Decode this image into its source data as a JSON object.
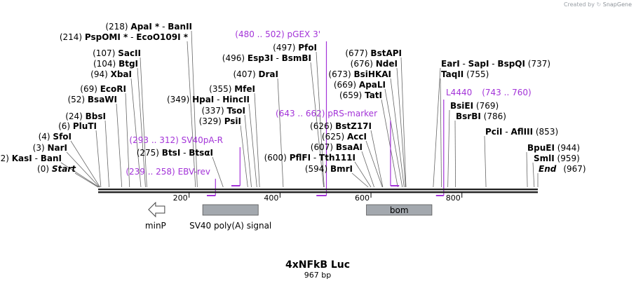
{
  "credit": {
    "prefix": "Created by",
    "brand": "SnapGene"
  },
  "map": {
    "title": "4xNFkB Luc",
    "size_label": "967 bp",
    "length_bp": 967,
    "colors": {
      "backbone": "#222222",
      "feature": "#a3a8ae",
      "primer": "#a333d8",
      "label": "#000000"
    }
  },
  "ruler": [
    {
      "pos": 200,
      "label": "200"
    },
    {
      "pos": 400,
      "label": "400"
    },
    {
      "pos": 600,
      "label": "600"
    },
    {
      "pos": 800,
      "label": "800"
    }
  ],
  "sites": [
    {
      "coord": "(0)",
      "name": "Start",
      "italic": true,
      "pos": 0
    },
    {
      "coord": "(2)",
      "name": "KasI",
      "name2": "BanI",
      "pos": 2
    },
    {
      "coord": "(3)",
      "name": "NarI",
      "pos": 3
    },
    {
      "coord": "(4)",
      "name": "SfoI",
      "pos": 4
    },
    {
      "coord": "(6)",
      "name": "PluTI",
      "pos": 6
    },
    {
      "coord": "(24)",
      "name": "BbsI",
      "pos": 24
    },
    {
      "coord": "(52)",
      "name": "BsaWI",
      "pos": 52
    },
    {
      "coord": "(69)",
      "name": "EcoRI",
      "pos": 69
    },
    {
      "coord": "(94)",
      "name": "XbaI",
      "pos": 94
    },
    {
      "coord": "(104)",
      "name": "BtgI",
      "pos": 104
    },
    {
      "coord": "(107)",
      "name": "SacII",
      "pos": 107
    },
    {
      "coord": "(214)",
      "name": "PspOMI *",
      "name2": "EcoO109I *",
      "pos": 214
    },
    {
      "coord": "(218)",
      "name": "ApaI *",
      "name2": "BanII",
      "pos": 218
    },
    {
      "coord": "(275)",
      "name": "BtsI",
      "name2": "BtsαI",
      "pos": 275
    },
    {
      "coord": "(329)",
      "name": "PsiI",
      "pos": 329
    },
    {
      "coord": "(337)",
      "name": "TsoI",
      "pos": 337
    },
    {
      "coord": "(349)",
      "name": "HpaI",
      "name2": "HincII",
      "pos": 349
    },
    {
      "coord": "(355)",
      "name": "MfeI",
      "pos": 355
    },
    {
      "coord": "(407)",
      "name": "DraI",
      "pos": 407
    },
    {
      "coord": "(496)",
      "name": "Esp3I",
      "name2": "BsmBI",
      "pos": 496
    },
    {
      "coord": "(497)",
      "name": "PfoI",
      "pos": 497
    },
    {
      "coord": "(594)",
      "name": "BmrI",
      "pos": 594
    },
    {
      "coord": "(600)",
      "name": "PflFI",
      "name2": "Tth111I",
      "pos": 600
    },
    {
      "coord": "(607)",
      "name": "BsaAI",
      "pos": 607
    },
    {
      "coord": "(625)",
      "name": "AccI",
      "pos": 625
    },
    {
      "coord": "(626)",
      "name": "BstZ17I",
      "pos": 626
    },
    {
      "coord": "(659)",
      "name": "TatI",
      "pos": 659
    },
    {
      "coord": "(669)",
      "name": "ApaLI",
      "pos": 669
    },
    {
      "coord": "(673)",
      "name": "BsiHKAI",
      "pos": 673
    },
    {
      "coord": "(676)",
      "name": "NdeI",
      "pos": 676
    },
    {
      "coord": "(677)",
      "name": "BstAPI",
      "pos": 677
    },
    {
      "coord": "(737)",
      "name": "EarI",
      "name2": "SapI",
      "name3": "BspQI",
      "pos": 737
    },
    {
      "coord": "(755)",
      "name": "TaqII",
      "pos": 755
    },
    {
      "coord": "(769)",
      "name": "BsiEI",
      "pos": 769
    },
    {
      "coord": "(786)",
      "name": "BsrBI",
      "pos": 786
    },
    {
      "coord": "(853)",
      "name": "PciI",
      "name2": "AflIII",
      "pos": 853
    },
    {
      "coord": "(944)",
      "name": "BpuEI",
      "pos": 944
    },
    {
      "coord": "(959)",
      "name": "SmlI",
      "pos": 959
    },
    {
      "coord": "(967)",
      "name": "End",
      "italic": true,
      "pos": 967
    }
  ],
  "primers": [
    {
      "name": "EBV-rev",
      "range": "(239 .. 258)",
      "start": 239,
      "end": 258,
      "strand": "rev"
    },
    {
      "name": "SV40pA-R",
      "range": "(293 .. 312)",
      "start": 293,
      "end": 312,
      "strand": "rev"
    },
    {
      "name": "pGEX 3'",
      "range": "(480 .. 502)",
      "start": 480,
      "end": 502,
      "strand": "rev"
    },
    {
      "name": "pRS-marker",
      "range": "(643 .. 662)",
      "start": 643,
      "end": 662,
      "strand": "fwd"
    },
    {
      "name": "L4440",
      "range": "(743 .. 760)",
      "start": 743,
      "end": 760,
      "strand": "rev"
    }
  ],
  "features": [
    {
      "name": "minP",
      "kind": "promoter",
      "pos": 80
    },
    {
      "name": "SV40 poly(A) signal",
      "kind": "box",
      "start": 230,
      "end": 352
    },
    {
      "name": "bom",
      "kind": "box",
      "start": 590,
      "end": 734
    }
  ]
}
